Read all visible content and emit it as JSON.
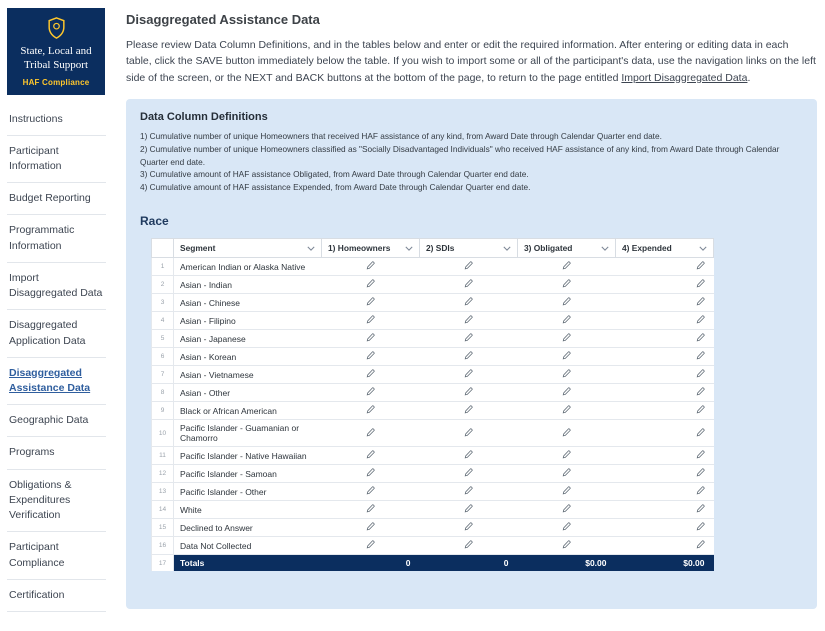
{
  "colors": {
    "navy": "#0b2e5f",
    "gold": "#ffc72c",
    "panel": "#d9e7f6",
    "link": "#2f5e9e",
    "text": "#3d4551"
  },
  "sidebar": {
    "logo": {
      "title": "State, Local and Tribal Support",
      "subtitle": "HAF Compliance"
    },
    "items": [
      {
        "label": "Instructions",
        "active": false
      },
      {
        "label": "Participant Information",
        "active": false
      },
      {
        "label": "Budget Reporting",
        "active": false
      },
      {
        "label": "Programmatic Information",
        "active": false
      },
      {
        "label": "Import Disaggregated Data",
        "active": false
      },
      {
        "label": "Disaggregated Application Data",
        "active": false
      },
      {
        "label": "Disaggregated Assistance Data",
        "active": true
      },
      {
        "label": "Geographic Data",
        "active": false
      },
      {
        "label": "Programs",
        "active": false
      },
      {
        "label": "Obligations & Expenditures Verification",
        "active": false
      },
      {
        "label": "Participant Compliance",
        "active": false
      },
      {
        "label": "Certification",
        "active": false
      }
    ]
  },
  "main": {
    "title": "Disaggregated Assistance Data",
    "intro": {
      "before_link": "Please review Data Column Definitions, and in the tables below and enter or edit the required information. After entering or editing data in each table, click the SAVE button immediately below the table. If you wish to import some or all of the participant's data, use the navigation links on the left side of the screen, or the NEXT and BACK buttons at the bottom of the page, to return to the page entitled ",
      "link": "Import Disaggregated Data",
      "after_link": "."
    },
    "definitions": {
      "heading": "Data Column Definitions",
      "items": [
        "1) Cumulative number of unique Homeowners that received HAF assistance of any kind, from Award Date through Calendar Quarter end date.",
        "2) Cumulative number of unique Homeowners classified as \"Socially Disadvantaged Individuals\" who received HAF assistance of any kind, from Award Date through Calendar Quarter end date.",
        "3) Cumulative amount of HAF assistance Obligated, from Award Date through Calendar Quarter end date.",
        "4) Cumulative amount of HAF assistance Expended, from Award Date through Calendar Quarter end date."
      ]
    },
    "race": {
      "heading": "Race",
      "table": {
        "columns": [
          "Segment",
          "1) Homeowners",
          "2) SDIs",
          "3) Obligated",
          "4) Expended"
        ],
        "cell_keys": [
          "homeowners",
          "sdis",
          "obligated",
          "expended"
        ],
        "rows": [
          {
            "num": "1",
            "segment": "American Indian or Alaska Native"
          },
          {
            "num": "2",
            "segment": "Asian - Indian"
          },
          {
            "num": "3",
            "segment": "Asian - Chinese"
          },
          {
            "num": "4",
            "segment": "Asian - Filipino"
          },
          {
            "num": "5",
            "segment": "Asian - Japanese"
          },
          {
            "num": "6",
            "segment": "Asian - Korean"
          },
          {
            "num": "7",
            "segment": "Asian - Vietnamese"
          },
          {
            "num": "8",
            "segment": "Asian - Other"
          },
          {
            "num": "9",
            "segment": "Black or African American"
          },
          {
            "num": "10",
            "segment": "Pacific Islander - Guamanian or Chamorro"
          },
          {
            "num": "11",
            "segment": "Pacific Islander - Native Hawaiian"
          },
          {
            "num": "12",
            "segment": "Pacific Islander - Samoan"
          },
          {
            "num": "13",
            "segment": "Pacific Islander - Other"
          },
          {
            "num": "14",
            "segment": "White"
          },
          {
            "num": "15",
            "segment": "Declined to Answer"
          },
          {
            "num": "16",
            "segment": "Data Not Collected"
          },
          {
            "num": "17",
            "segment": "Totals"
          }
        ],
        "totals": {
          "num": "17",
          "label": "Totals",
          "values": [
            "0",
            "0",
            "$0.00",
            "$0.00"
          ]
        }
      }
    }
  }
}
